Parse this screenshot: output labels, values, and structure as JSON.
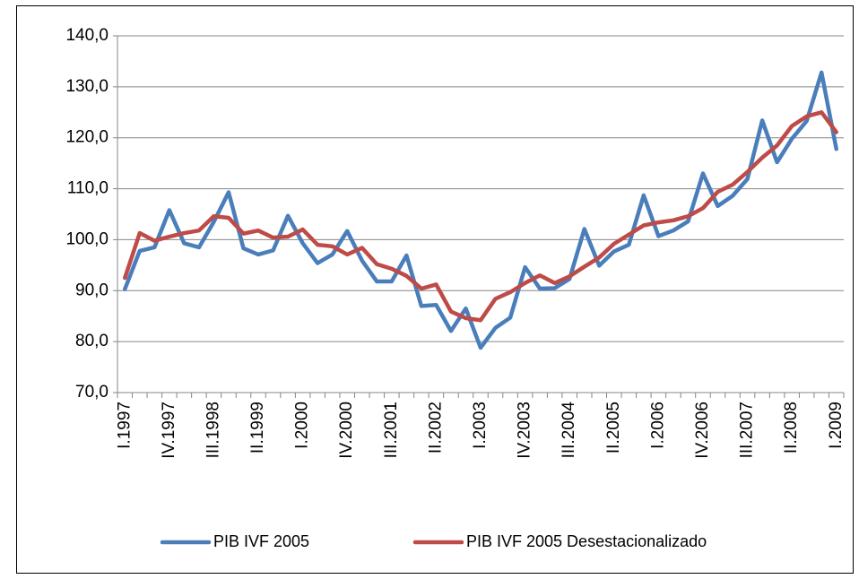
{
  "chart_data": {
    "type": "line",
    "categories": [
      "I.1997",
      null,
      null,
      "IV.1997",
      null,
      null,
      "III.1998",
      null,
      null,
      "II.1999",
      null,
      null,
      "I.2000",
      null,
      null,
      "IV.2000",
      null,
      null,
      "III.2001",
      null,
      null,
      "II.2002",
      null,
      null,
      "I.2003",
      null,
      null,
      "IV.2003",
      null,
      null,
      "III.2004",
      null,
      null,
      "II.2005",
      null,
      null,
      "I.2006",
      null,
      null,
      "IV.2006",
      null,
      null,
      "III.2007",
      null,
      null,
      "II.2008",
      null,
      null,
      "I.2009"
    ],
    "series": [
      {
        "name": "PIB IVF 2005",
        "color": "#4a7ebb",
        "values": [
          90.3,
          97.8,
          98.5,
          105.8,
          99.3,
          98.5,
          103.5,
          109.3,
          98.3,
          97.1,
          97.9,
          104.7,
          99.3,
          95.4,
          97.1,
          101.7,
          95.9,
          91.8,
          91.8,
          96.9,
          87.0,
          87.2,
          82.1,
          86.5,
          78.8,
          82.7,
          84.7,
          94.6,
          90.4,
          90.5,
          92.3,
          102.1,
          94.9,
          97.7,
          99.0,
          108.7,
          100.7,
          101.8,
          103.6,
          113.0,
          106.6,
          108.6,
          111.9,
          123.4,
          115.2,
          119.8,
          123.3,
          132.8,
          117.8
        ]
      },
      {
        "name": "PIB IVF 2005 Desestacionalizado",
        "color": "#be4b48",
        "values": [
          92.5,
          101.3,
          99.8,
          100.6,
          101.3,
          101.8,
          104.6,
          104.3,
          101.2,
          101.8,
          100.4,
          100.6,
          102.0,
          99.0,
          98.7,
          97.1,
          98.4,
          95.2,
          94.3,
          92.9,
          90.4,
          91.2,
          85.9,
          84.6,
          84.2,
          88.4,
          89.7,
          91.5,
          93.0,
          91.5,
          92.8,
          94.7,
          96.5,
          99.2,
          101.0,
          102.8,
          103.4,
          103.8,
          104.6,
          106.2,
          109.4,
          110.8,
          113.3,
          116.1,
          118.5,
          122.3,
          124.2,
          125.0,
          121.1
        ]
      }
    ],
    "ylim": [
      70,
      140
    ],
    "yticks": [
      {
        "value": 70,
        "label": "70,0"
      },
      {
        "value": 80,
        "label": "80,0"
      },
      {
        "value": 90,
        "label": "90,0"
      },
      {
        "value": 100,
        "label": "100,0"
      },
      {
        "value": 110,
        "label": "110,0"
      },
      {
        "value": 120,
        "label": "120,0"
      },
      {
        "value": 130,
        "label": "130,0"
      },
      {
        "value": 140,
        "label": "140,0"
      }
    ],
    "grid": true,
    "legend": "bottom"
  }
}
